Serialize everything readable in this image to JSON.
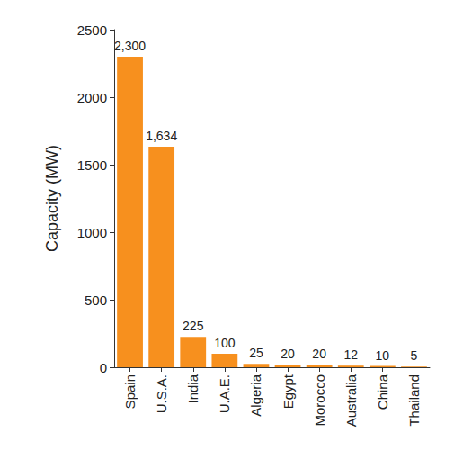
{
  "chart_data": {
    "type": "bar",
    "ylabel": "Capacity (MW)",
    "categories": [
      "Spain",
      "U.S.A.",
      "India",
      "U.A.E.",
      "Algeria",
      "Egypt",
      "Morocco",
      "Australia",
      "China",
      "Thailand"
    ],
    "values": [
      2300,
      1634,
      225,
      100,
      25,
      20,
      20,
      12,
      10,
      5
    ],
    "value_labels": [
      "2,300",
      "1,634",
      "225",
      "100",
      "25",
      "20",
      "20",
      "12",
      "10",
      "5"
    ],
    "color": "#f7901e",
    "ylim": [
      0,
      2500
    ],
    "yticks": [
      0,
      500,
      1000,
      1500,
      2000,
      2500
    ],
    "grid": false,
    "data_labels": true
  }
}
